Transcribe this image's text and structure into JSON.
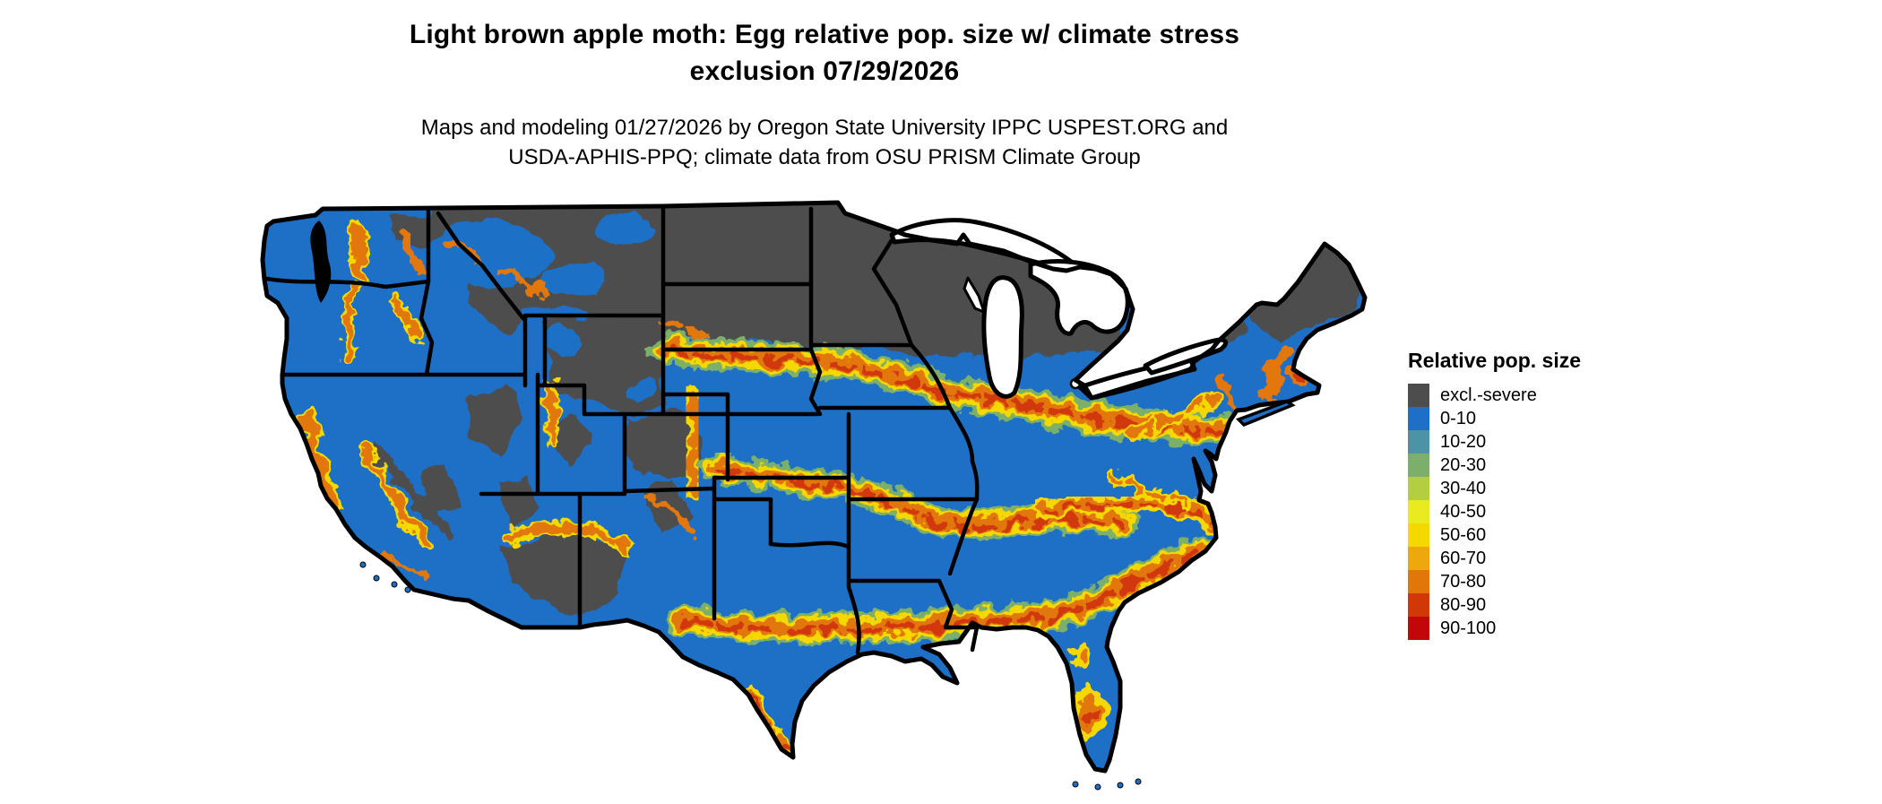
{
  "title": {
    "line1": "Light brown apple moth: Egg relative pop. size w/ climate stress",
    "line2": "exclusion 07/29/2026"
  },
  "subtitle": {
    "line1": "Maps and modeling 01/27/2026 by Oregon State University IPPC USPEST.ORG and",
    "line2": "USDA-APHIS-PPQ; climate data from OSU PRISM Climate Group"
  },
  "legend": {
    "title": "Relative pop. size",
    "items": [
      {
        "label": "excl.-severe",
        "color": "#4d4d4d"
      },
      {
        "label": "0-10",
        "color": "#1d70c6"
      },
      {
        "label": "10-20",
        "color": "#4d93a6"
      },
      {
        "label": "20-30",
        "color": "#7caf6b"
      },
      {
        "label": "30-40",
        "color": "#b4ce42"
      },
      {
        "label": "40-50",
        "color": "#e9eb20"
      },
      {
        "label": "50-60",
        "color": "#f5d800"
      },
      {
        "label": "60-70",
        "color": "#eca80d"
      },
      {
        "label": "70-80",
        "color": "#e17708"
      },
      {
        "label": "80-90",
        "color": "#d23708"
      },
      {
        "label": "90-100",
        "color": "#c10708"
      }
    ]
  },
  "map": {
    "type": "raster population-risk map of the contiguous United States",
    "land_color": "#1d70c6",
    "exclusion_color": "#4d4d4d",
    "boundary_color": "#000000",
    "water_color": "#ffffff"
  }
}
